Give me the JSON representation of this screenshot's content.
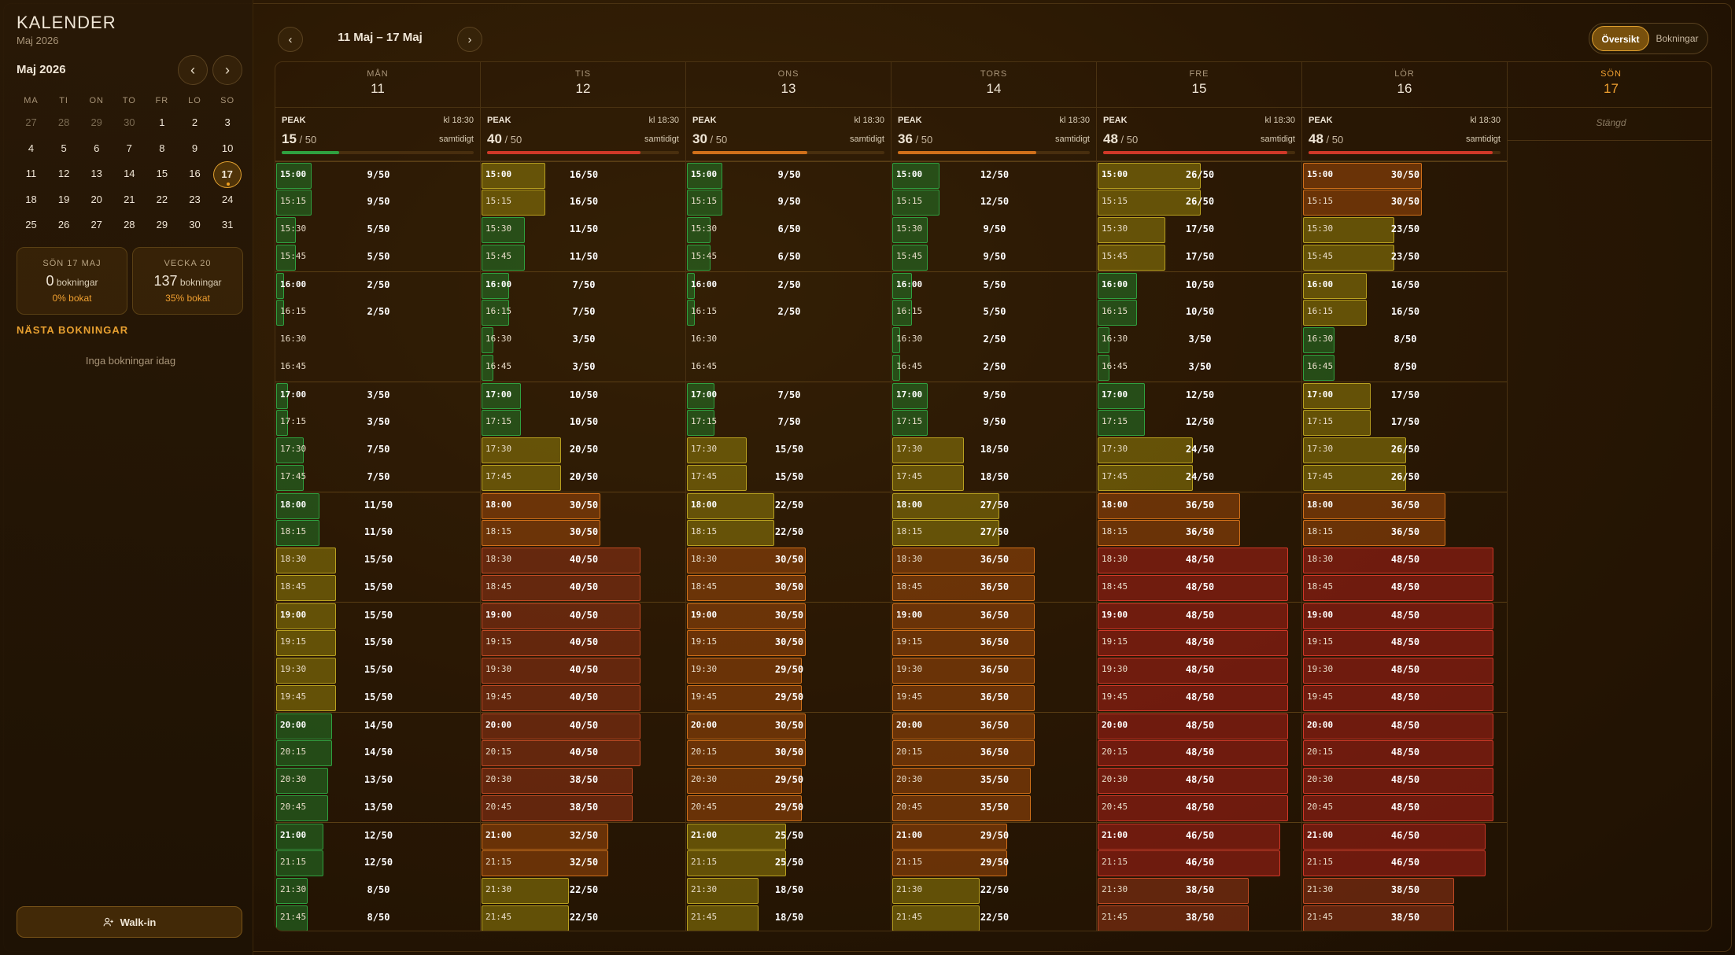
{
  "sidebar": {
    "title": "KALENDER",
    "subtitle": "Maj 2026",
    "month_label": "Maj 2026",
    "prev": "‹",
    "next": "›",
    "dow": [
      "MA",
      "TI",
      "ON",
      "TO",
      "FR",
      "LO",
      "SO"
    ],
    "weeks": [
      [
        "27",
        "28",
        "29",
        "30",
        "1",
        "2",
        "3"
      ],
      [
        "4",
        "5",
        "6",
        "7",
        "8",
        "9",
        "10"
      ],
      [
        "11",
        "12",
        "13",
        "14",
        "15",
        "16",
        "17"
      ],
      [
        "18",
        "19",
        "20",
        "21",
        "22",
        "23",
        "24"
      ],
      [
        "25",
        "26",
        "27",
        "28",
        "29",
        "30",
        "31"
      ]
    ],
    "today": "17",
    "day_card": {
      "label": "SÖN 17 MAJ",
      "count": "0",
      "unit": "bokningar",
      "pct": "0% bokat"
    },
    "week_card": {
      "label": "VECKA 20",
      "count": "137",
      "unit": "bokningar",
      "pct": "35% bokat"
    },
    "next_title": "NÄSTA BOKNINGAR",
    "next_empty": "Inga bokningar idag",
    "walkin": "Walk-in"
  },
  "header": {
    "range": "11 Maj – 17 Maj",
    "prev": "‹",
    "next": "›",
    "tabs": [
      "Översikt",
      "Bokningar"
    ]
  },
  "peak_label": "PEAK",
  "peak_time": "kl 18:30",
  "peak_suffix": "samtidigt",
  "capacity": "50",
  "closed_label": "Stängd",
  "times": [
    "15:00",
    "15:15",
    "15:30",
    "15:45",
    "16:00",
    "16:15",
    "16:30",
    "16:45",
    "17:00",
    "17:15",
    "17:30",
    "17:45",
    "18:00",
    "18:15",
    "18:30",
    "18:45",
    "19:00",
    "19:15",
    "19:30",
    "19:45",
    "20:00",
    "20:15",
    "20:30",
    "20:45",
    "21:00",
    "21:15",
    "21:30",
    "21:45"
  ],
  "days": [
    {
      "name": "MÅN",
      "date": "11",
      "peak": "15",
      "counts": [
        9,
        9,
        5,
        5,
        2,
        2,
        0,
        0,
        3,
        3,
        7,
        7,
        11,
        11,
        15,
        15,
        15,
        15,
        15,
        15,
        14,
        14,
        13,
        13,
        12,
        12,
        8,
        8
      ]
    },
    {
      "name": "TIS",
      "date": "12",
      "peak": "40",
      "counts": [
        16,
        16,
        11,
        11,
        7,
        7,
        3,
        3,
        10,
        10,
        20,
        20,
        30,
        30,
        40,
        40,
        40,
        40,
        40,
        40,
        40,
        40,
        38,
        38,
        32,
        32,
        22,
        22
      ]
    },
    {
      "name": "ONS",
      "date": "13",
      "peak": "30",
      "counts": [
        9,
        9,
        6,
        6,
        2,
        2,
        0,
        0,
        7,
        7,
        15,
        15,
        22,
        22,
        30,
        30,
        30,
        30,
        29,
        29,
        30,
        30,
        29,
        29,
        25,
        25,
        18,
        18
      ]
    },
    {
      "name": "TORS",
      "date": "14",
      "peak": "36",
      "counts": [
        12,
        12,
        9,
        9,
        5,
        5,
        2,
        2,
        9,
        9,
        18,
        18,
        27,
        27,
        36,
        36,
        36,
        36,
        36,
        36,
        36,
        36,
        35,
        35,
        29,
        29,
        22,
        22
      ]
    },
    {
      "name": "FRE",
      "date": "15",
      "peak": "48",
      "counts": [
        26,
        26,
        17,
        17,
        10,
        10,
        3,
        3,
        12,
        12,
        24,
        24,
        36,
        36,
        48,
        48,
        48,
        48,
        48,
        48,
        48,
        48,
        48,
        48,
        46,
        46,
        38,
        38
      ]
    },
    {
      "name": "LÖR",
      "date": "16",
      "peak": "48",
      "counts": [
        30,
        30,
        23,
        23,
        16,
        16,
        8,
        8,
        17,
        17,
        26,
        26,
        36,
        36,
        48,
        48,
        48,
        48,
        48,
        48,
        48,
        48,
        48,
        48,
        46,
        46,
        38,
        38
      ]
    },
    {
      "name": "SÖN",
      "date": "17",
      "closed": true
    }
  ]
}
